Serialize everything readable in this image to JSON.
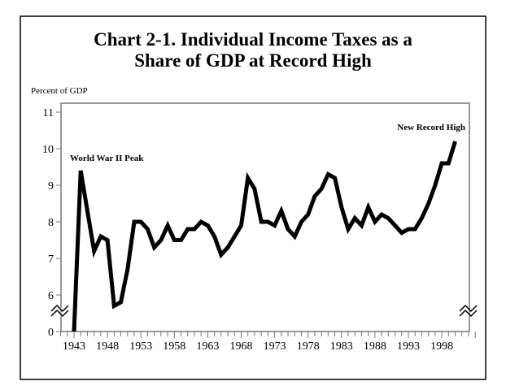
{
  "chart_data": {
    "type": "line",
    "title_lines": [
      "Chart 2-1. Individual Income Taxes as a",
      "Share of GDP at Record High"
    ],
    "ylabel": "Percent of GDP",
    "xlabel": "",
    "y_ticks": [
      "0",
      "6",
      "7",
      "8",
      "9",
      "10",
      "11"
    ],
    "y_tick_values": [
      0,
      6,
      7,
      8,
      9,
      10,
      11
    ],
    "y_axis_break": "between 0 and 6 (axis break marks shown)",
    "x_tick_labels": [
      "1943",
      "1948",
      "1953",
      "1958",
      "1963",
      "1968",
      "1973",
      "1978",
      "1983",
      "1988",
      "1993",
      "1998"
    ],
    "xlim": [
      1941,
      2003
    ],
    "ylim": [
      0,
      11.2
    ],
    "grid": false,
    "annotations": [
      {
        "text": "World War II Peak",
        "near_x": 1944,
        "near_y": 9.4
      },
      {
        "text": "New Record  High",
        "near_x": 2000,
        "near_y": 10.2
      }
    ],
    "series": [
      {
        "name": "Individual income taxes (% of GDP)",
        "x": [
          1943,
          1944,
          1945,
          1946,
          1947,
          1948,
          1949,
          1950,
          1951,
          1952,
          1953,
          1954,
          1955,
          1956,
          1957,
          1958,
          1959,
          1960,
          1961,
          1962,
          1963,
          1964,
          1965,
          1966,
          1967,
          1968,
          1969,
          1970,
          1971,
          1972,
          1973,
          1974,
          1975,
          1976,
          1977,
          1978,
          1979,
          1980,
          1981,
          1982,
          1983,
          1984,
          1985,
          1986,
          1987,
          1988,
          1989,
          1990,
          1991,
          1992,
          1993,
          1994,
          1995,
          1996,
          1997,
          1998,
          1999,
          2000
        ],
        "values": [
          0,
          9.4,
          8.3,
          7.2,
          7.6,
          7.5,
          5.7,
          5.8,
          6.7,
          8.0,
          8.0,
          7.8,
          7.3,
          7.5,
          7.9,
          7.5,
          7.5,
          7.8,
          7.8,
          8.0,
          7.9,
          7.6,
          7.1,
          7.3,
          7.6,
          7.9,
          9.2,
          8.9,
          8.0,
          8.0,
          7.9,
          8.3,
          7.8,
          7.6,
          8.0,
          8.2,
          8.7,
          8.9,
          9.3,
          9.2,
          8.4,
          7.8,
          8.1,
          7.9,
          8.4,
          8.0,
          8.2,
          8.1,
          7.9,
          7.7,
          7.8,
          7.8,
          8.1,
          8.5,
          9.0,
          9.6,
          9.6,
          10.2
        ]
      }
    ]
  }
}
